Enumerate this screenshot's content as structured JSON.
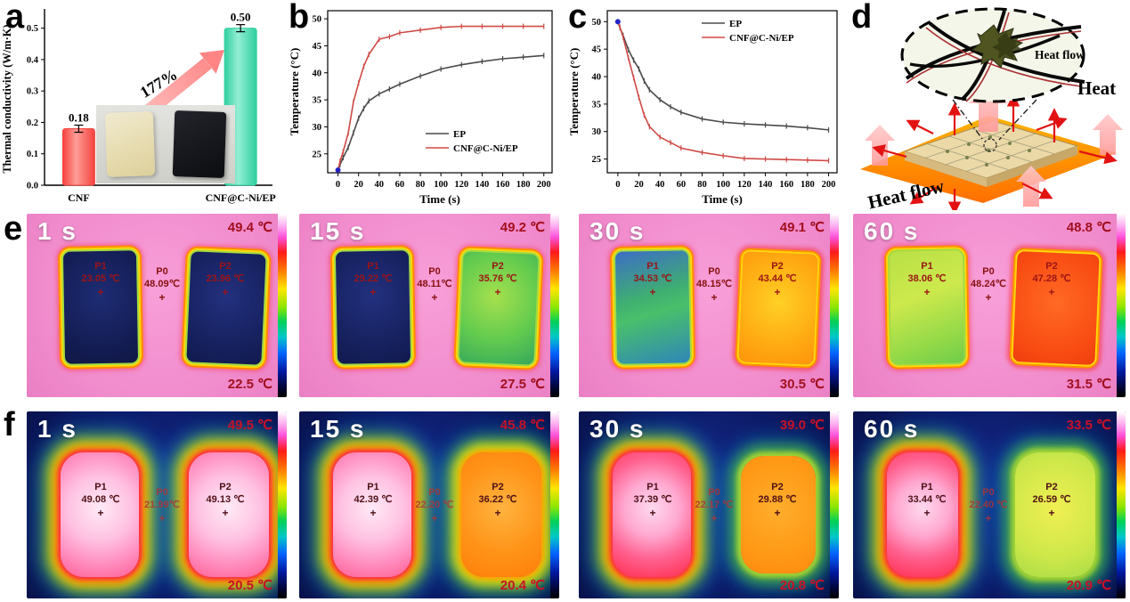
{
  "panel_letters": {
    "a": "a",
    "b": "b",
    "c": "c",
    "d": "d",
    "e": "e",
    "f": "f"
  },
  "marker_symbol": "+",
  "panel_d": {
    "inset_label": "Heat flow",
    "heat_label": "Heat",
    "flow_label": "Heat flow"
  },
  "chart_data": [
    {
      "id": "a",
      "type": "bar",
      "categories": [
        "CNF",
        "CNF@C-Ni/EP"
      ],
      "values": [
        0.18,
        0.5
      ],
      "value_labels": [
        "0.18",
        "0.50"
      ],
      "bar_colors_main": [
        "#f5423e",
        "#30d0a0"
      ],
      "bar_colors_light": [
        "#ff9d98",
        "#93eed4"
      ],
      "label_colors": [
        "#e02424",
        "#11b388"
      ],
      "annotation": "177%",
      "annotation_color": "#f34040",
      "title": "",
      "xlabel": "",
      "ylabel": "Thermal conductivity (W/m·K)",
      "ylim": [
        0,
        0.55
      ],
      "yticks": [
        "0.0",
        "0.1",
        "0.2",
        "0.3",
        "0.4",
        "0.5"
      ],
      "grid": false
    },
    {
      "id": "b",
      "type": "line",
      "title": "",
      "xlabel": "Time (s)",
      "ylabel": "Temperature (°C)",
      "xlim": [
        -10,
        208
      ],
      "ylim": [
        21.5,
        51.5
      ],
      "xticks": [
        0,
        20,
        40,
        60,
        80,
        100,
        120,
        140,
        160,
        180,
        200
      ],
      "yticks": [
        25,
        30,
        35,
        40,
        45,
        50
      ],
      "legend_position": "bottom-right",
      "grid": false,
      "start_dot_color": "#2226c8",
      "x": [
        0,
        2,
        5,
        10,
        15,
        20,
        25,
        30,
        40,
        50,
        60,
        80,
        100,
        120,
        140,
        160,
        180,
        200
      ],
      "series": [
        {
          "name": "EP",
          "color": "#4a4a4a",
          "values": [
            22,
            23.0,
            24.3,
            26.2,
            28.9,
            31.6,
            33.4,
            34.8,
            36.1,
            37.0,
            37.9,
            39.4,
            40.7,
            41.5,
            42.1,
            42.6,
            42.9,
            43.2
          ]
        },
        {
          "name": "CNF@C-Ni/EP",
          "color": "#cf4a46",
          "values": [
            22,
            23.6,
            25.4,
            28.9,
            34.6,
            38.1,
            41.2,
            43.4,
            46.2,
            46.7,
            47.4,
            47.9,
            48.4,
            48.6,
            48.6,
            48.6,
            48.6,
            48.6
          ]
        }
      ]
    },
    {
      "id": "c",
      "type": "line",
      "title": "",
      "xlabel": "Time (s)",
      "ylabel": "Temperature (°C)",
      "xlim": [
        -10,
        208
      ],
      "ylim": [
        22.5,
        52
      ],
      "xticks": [
        0,
        20,
        40,
        60,
        80,
        100,
        120,
        140,
        160,
        180,
        200
      ],
      "yticks": [
        25,
        30,
        35,
        40,
        45,
        50
      ],
      "legend_position": "top-right",
      "grid": false,
      "start_dot_color": "#2226c8",
      "x": [
        0,
        2,
        5,
        10,
        15,
        20,
        25,
        30,
        40,
        50,
        60,
        80,
        100,
        120,
        140,
        160,
        180,
        200
      ],
      "series": [
        {
          "name": "EP",
          "color": "#4a4a4a",
          "values": [
            50,
            48.9,
            47.5,
            44.9,
            43.0,
            41.4,
            39.2,
            37.6,
            35.8,
            34.5,
            33.5,
            32.3,
            31.7,
            31.4,
            31.2,
            31.0,
            30.7,
            30.3
          ]
        },
        {
          "name": "CNF@C-Ni/EP",
          "color": "#cf4a46",
          "values": [
            50,
            49.0,
            47.2,
            43.4,
            39.8,
            36.2,
            33.0,
            30.9,
            29.0,
            28.0,
            27.0,
            26.2,
            25.6,
            25.1,
            25.0,
            24.9,
            24.8,
            24.7
          ]
        }
      ]
    }
  ],
  "thermal_rows": [
    {
      "id": "e",
      "images": [
        {
          "time": "1 s",
          "t_high": "49.4 ℃",
          "t_low": "22.5 ℃",
          "points": {
            "p1": {
              "label": "P1",
              "temp": "23.05 ℃"
            },
            "p0": {
              "label": "P0",
              "temp": "48.09℃"
            },
            "p2": {
              "label": "P2",
              "temp": "23.96 ℃"
            }
          }
        },
        {
          "time": "15 s",
          "t_high": "49.2 ℃",
          "t_low": "27.5 ℃",
          "points": {
            "p1": {
              "label": "P1",
              "temp": "29.22 ℃"
            },
            "p0": {
              "label": "P0",
              "temp": "48.11℃"
            },
            "p2": {
              "label": "P2",
              "temp": "35.76 ℃"
            }
          }
        },
        {
          "time": "30 s",
          "t_high": "49.1 ℃",
          "t_low": "30.5 ℃",
          "points": {
            "p1": {
              "label": "P1",
              "temp": "34.53 ℃"
            },
            "p0": {
              "label": "P0",
              "temp": "48.15℃"
            },
            "p2": {
              "label": "P2",
              "temp": "43.44 ℃"
            }
          }
        },
        {
          "time": "60 s",
          "t_high": "48.8 ℃",
          "t_low": "31.5 ℃",
          "points": {
            "p1": {
              "label": "P1",
              "temp": "38.06 ℃"
            },
            "p0": {
              "label": "P0",
              "temp": "48.24℃"
            },
            "p2": {
              "label": "P2",
              "temp": "47.28 ℃"
            }
          }
        }
      ]
    },
    {
      "id": "f",
      "images": [
        {
          "time": "1 s",
          "t_high": "49.5 ℃",
          "t_low": "20.5 ℃",
          "points": {
            "p1": {
              "label": "P1",
              "temp": "49.08 ℃"
            },
            "p0": {
              "label": "P0",
              "temp": "21.99℃"
            },
            "p2": {
              "label": "P2",
              "temp": "49.13 ℃"
            }
          }
        },
        {
          "time": "15 s",
          "t_high": "45.8 ℃",
          "t_low": "20.4 ℃",
          "points": {
            "p1": {
              "label": "P1",
              "temp": "42.39 ℃"
            },
            "p0": {
              "label": "P0",
              "temp": "22.20 ℃"
            },
            "p2": {
              "label": "P2",
              "temp": "36.22 ℃"
            }
          }
        },
        {
          "time": "30 s",
          "t_high": "39.0 ℃",
          "t_low": "20.8 ℃",
          "points": {
            "p1": {
              "label": "P1",
              "temp": "37.39 ℃"
            },
            "p0": {
              "label": "P0",
              "temp": "22.17 ℃"
            },
            "p2": {
              "label": "P2",
              "temp": "29.88 ℃"
            }
          }
        },
        {
          "time": "60 s",
          "t_high": "33.5 ℃",
          "t_low": "20.9 ℃",
          "points": {
            "p1": {
              "label": "P1",
              "temp": "33.44 ℃"
            },
            "p0": {
              "label": "P0",
              "temp": "22.40 ℃"
            },
            "p2": {
              "label": "P2",
              "temp": "26.59 ℃"
            }
          }
        }
      ]
    }
  ]
}
